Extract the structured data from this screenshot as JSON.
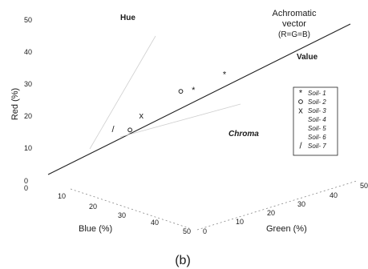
{
  "chart_data": {
    "type": "scatter",
    "projection": "3D RGB colour space (Red vertical, Blue and Green as oblique floor axes)",
    "axes": {
      "red": {
        "label": "Red (%)",
        "ticks": [
          "0",
          "10",
          "20",
          "30",
          "40",
          "50"
        ],
        "range": [
          0,
          50
        ]
      },
      "blue": {
        "label": "Blue (%)",
        "ticks": [
          "10",
          "20",
          "30",
          "40",
          "50"
        ],
        "range": [
          0,
          50
        ]
      },
      "green": {
        "label": "Green (%)",
        "ticks": [
          "0",
          "10",
          "20",
          "30",
          "40",
          "50"
        ],
        "range": [
          0,
          50
        ]
      }
    },
    "annotations": {
      "hue": "Hue",
      "achromatic_1": "Achromatic",
      "achromatic_2": "vector",
      "achromatic_3": "(R=G=B)",
      "value": "Value",
      "chroma": "Chroma"
    },
    "legend": [
      "Soil- 1",
      "Soil- 2",
      "Soil- 3",
      "Soil- 4",
      "Soil- 5",
      "Soil- 6",
      "Soil- 7"
    ],
    "series": [
      {
        "name": "Soil- 1",
        "marker": "*",
        "points": [
          {
            "red": 30,
            "green": 25,
            "blue": 25
          },
          {
            "red": 25,
            "green": 21,
            "blue": 20
          }
        ]
      },
      {
        "name": "Soil- 2",
        "marker": "o",
        "points": [
          {
            "red": 24,
            "green": 20,
            "blue": 17
          },
          {
            "red": 13,
            "green": 12,
            "blue": 11
          }
        ]
      },
      {
        "name": "Soil- 3",
        "marker": "x",
        "points": [
          {
            "red": 17,
            "green": 14,
            "blue": 12
          }
        ]
      },
      {
        "name": "Soil- 7",
        "marker": "/",
        "points": [
          {
            "red": 13,
            "green": 10,
            "blue": 8
          }
        ]
      }
    ],
    "caption": "(b)"
  }
}
